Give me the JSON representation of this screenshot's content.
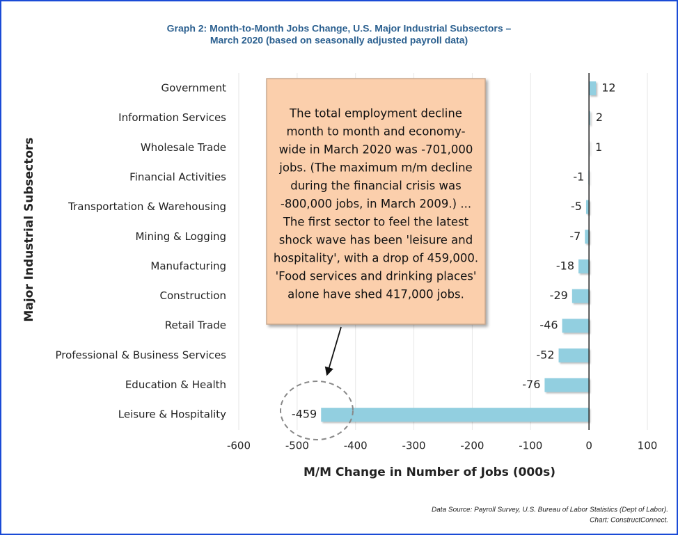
{
  "chart_data": {
    "type": "hbar",
    "title": [
      "Graph 2: Month-to-Month Jobs Change, U.S. Major Industrial Subsectors –",
      "March 2020 (based on seasonally adjusted payroll data)"
    ],
    "x_label": "M/M Change in Number of Jobs (000s)",
    "y_label": "Major Industrial Subsectors",
    "categories": [
      "Government",
      "Information Services",
      "Wholesale Trade",
      "Financial Activities",
      "Transportation & Warehousing",
      "Mining & Logging",
      "Manufacturing",
      "Construction",
      "Retail Trade",
      "Professional & Business Services",
      "Education & Health",
      "Leisure & Hospitality"
    ],
    "values": [
      12,
      2,
      1,
      -1,
      -5,
      -7,
      -18,
      -29,
      -46,
      -52,
      -76,
      -459
    ],
    "color": "#92cfe0",
    "xlim": [
      -600,
      100
    ],
    "xticks": [
      -600,
      -500,
      -400,
      -300,
      -200,
      -100,
      0,
      100
    ],
    "grid": true,
    "annotation": [
      "The total employment decline",
      "month to month and economy-",
      "wide in March 2020 was -701,000",
      "jobs. (The maximum m/m decline",
      "during the financial crisis was",
      "-800,000 jobs, in March 2009.) ...",
      "The first sector to feel the latest",
      "shock wave has been 'leisure and",
      "hospitality', with a drop of 459,000.",
      "'Food services and drinking places'",
      "alone have shed 417,000 jobs."
    ],
    "source": [
      "Data Source: Payroll Survey, U.S. Bureau of Labor Statistics (Dept of Labor).",
      "Chart: ConstructConnect."
    ]
  }
}
